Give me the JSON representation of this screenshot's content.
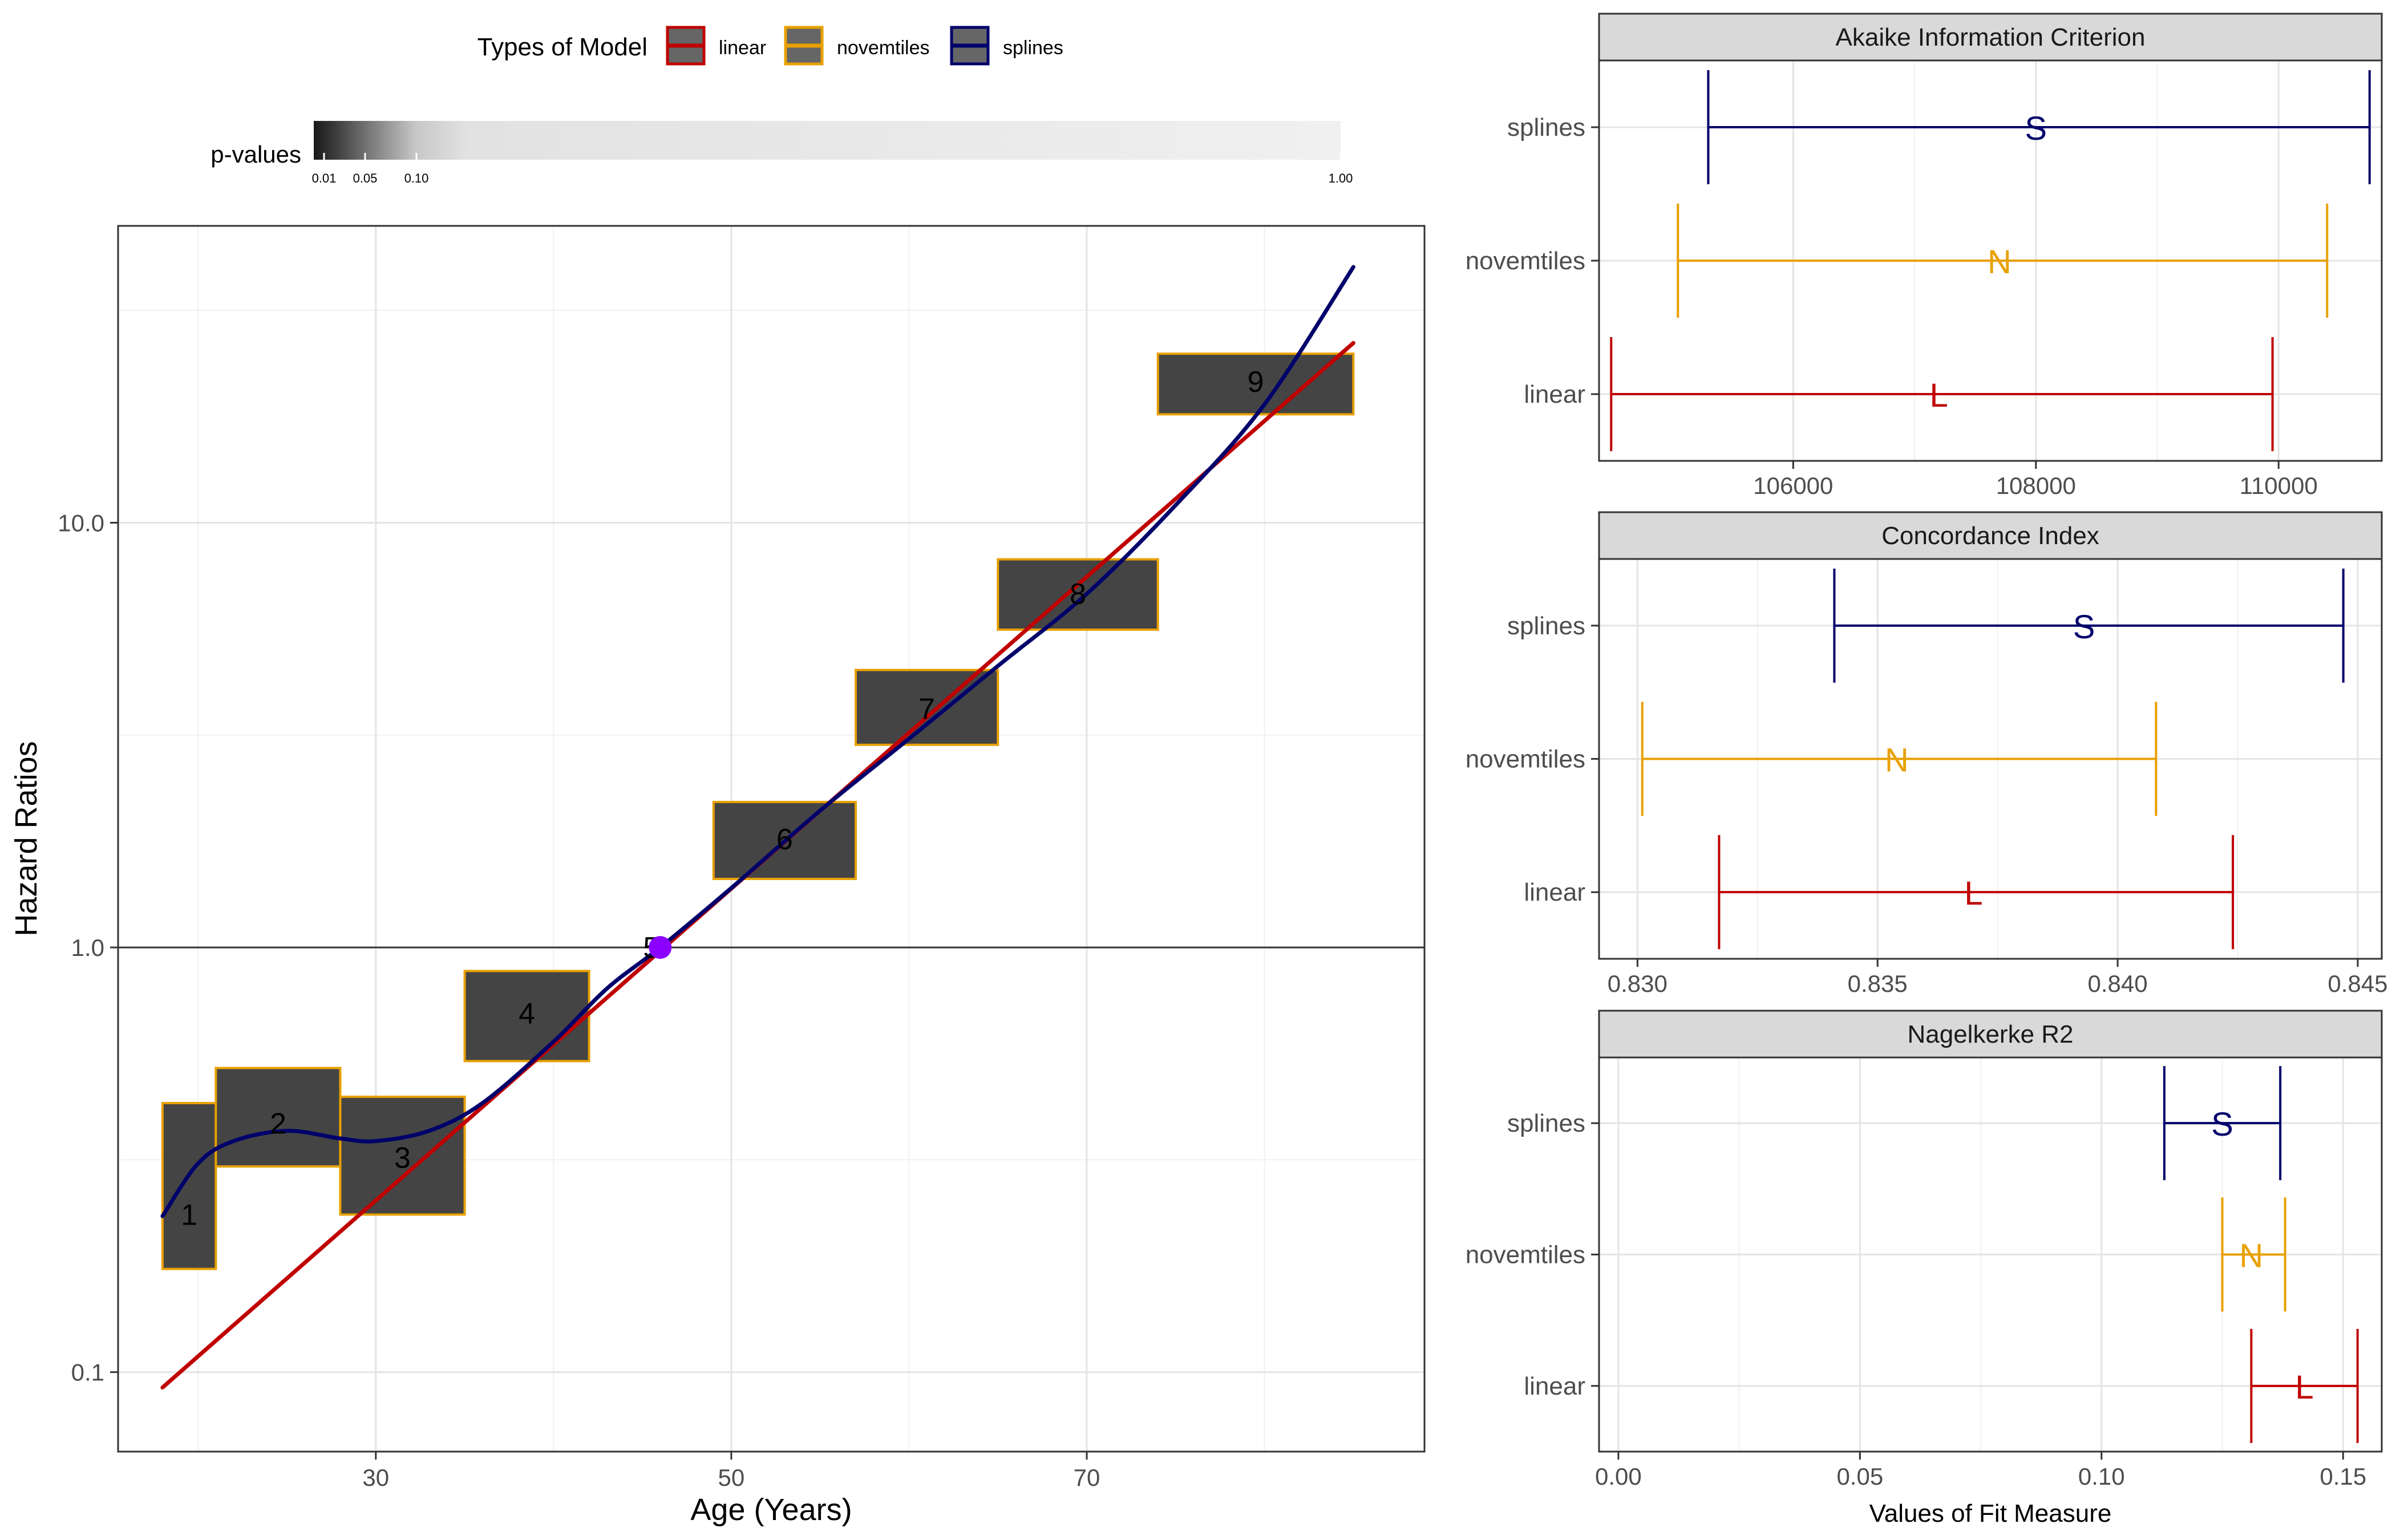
{
  "legend": {
    "model_title": "Types of Model",
    "models": [
      {
        "name": "linear",
        "color": "#c00000"
      },
      {
        "name": "novemtiles",
        "color": "#e8a000"
      },
      {
        "name": "splines",
        "color": "#00006b"
      }
    ],
    "pvalue_title": "p-values",
    "pvalue_ticks": [
      "0.01",
      "0.05",
      "0.10",
      "1.00"
    ]
  },
  "chart_data": [
    {
      "type": "line",
      "xlabel": "Age (Years)",
      "ylabel": "Hazard Ratios",
      "log_y": true,
      "xlim": [
        15.5,
        89
      ],
      "ylim": [
        0.065,
        50
      ],
      "x_ticks": [
        30,
        50,
        70
      ],
      "y_ticks": [
        0.1,
        1.0,
        10.0
      ],
      "y_tick_labels": [
        "0.1",
        "1.0",
        "10.0"
      ],
      "reference_line": 1.0,
      "grid": true,
      "novemtiles": [
        {
          "label": "1",
          "x0": 18,
          "x1": 21,
          "lo": 0.175,
          "hi": 0.43,
          "mid": 0.235
        },
        {
          "label": "2",
          "x0": 21,
          "x1": 28,
          "lo": 0.305,
          "hi": 0.52,
          "mid": 0.385
        },
        {
          "label": "3",
          "x0": 28,
          "x1": 35,
          "lo": 0.235,
          "hi": 0.445,
          "mid": 0.32
        },
        {
          "label": "4",
          "x0": 35,
          "x1": 42,
          "lo": 0.54,
          "hi": 0.88,
          "mid": 0.7
        },
        {
          "label": "5",
          "x0": 46,
          "x1": 46,
          "lo": 1.0,
          "hi": 1.0,
          "mid": 1.0
        },
        {
          "label": "6",
          "x0": 49,
          "x1": 57,
          "lo": 1.45,
          "hi": 2.2,
          "mid": 1.8
        },
        {
          "label": "7",
          "x0": 57,
          "x1": 65,
          "lo": 3.0,
          "hi": 4.5,
          "mid": 3.65
        },
        {
          "label": "8",
          "x0": 65,
          "x1": 74,
          "lo": 5.6,
          "hi": 8.2,
          "mid": 6.8
        },
        {
          "label": "9",
          "x0": 74,
          "x1": 85,
          "lo": 18.0,
          "hi": 25.0,
          "mid": 21.5
        }
      ],
      "reference_point": {
        "x": 46,
        "y": 1.0,
        "color": "#8b00ff"
      },
      "series": [
        {
          "name": "linear",
          "x": [
            18,
            85
          ],
          "y": [
            0.092,
            26.5
          ]
        },
        {
          "name": "splines",
          "x": [
            18,
            20,
            22,
            25,
            28,
            30,
            33,
            36,
            40,
            43,
            46,
            50,
            55,
            60,
            65,
            70,
            75,
            80,
            85
          ],
          "y": [
            0.233,
            0.31,
            0.35,
            0.37,
            0.355,
            0.35,
            0.37,
            0.43,
            0.6,
            0.8,
            1.0,
            1.38,
            2.1,
            3.1,
            4.6,
            6.8,
            11.0,
            19.0,
            40.0
          ]
        }
      ]
    },
    {
      "type": "errorbar",
      "title": "Akaike Information Criterion",
      "categories": [
        "splines",
        "novemtiles",
        "linear"
      ],
      "markers": [
        "S",
        "N",
        "L"
      ],
      "xlim": [
        104400,
        110850
      ],
      "x_ticks": [
        106000,
        108000,
        110000
      ],
      "x_tick_labels": [
        "106000",
        "108000",
        "110000"
      ],
      "series": [
        {
          "name": "splines",
          "lo": 105300,
          "mid": 108000,
          "hi": 110750
        },
        {
          "name": "novemtiles",
          "lo": 105050,
          "mid": 107700,
          "hi": 110400
        },
        {
          "name": "linear",
          "lo": 104500,
          "mid": 107200,
          "hi": 109950
        }
      ]
    },
    {
      "type": "errorbar",
      "title": "Concordance Index",
      "categories": [
        "splines",
        "novemtiles",
        "linear"
      ],
      "markers": [
        "S",
        "N",
        "L"
      ],
      "xlim": [
        0.8292,
        0.8455
      ],
      "x_ticks": [
        0.83,
        0.835,
        0.84,
        0.845
      ],
      "x_tick_labels": [
        "0.830",
        "0.835",
        "0.840",
        "0.845"
      ],
      "series": [
        {
          "name": "splines",
          "lo": 0.8341,
          "mid": 0.8393,
          "hi": 0.8447
        },
        {
          "name": "novemtiles",
          "lo": 0.8301,
          "mid": 0.8354,
          "hi": 0.8408
        },
        {
          "name": "linear",
          "lo": 0.8317,
          "mid": 0.837,
          "hi": 0.8424
        }
      ]
    },
    {
      "type": "errorbar",
      "title": "Nagelkerke R2",
      "xlabel": "Values of Fit Measure",
      "categories": [
        "splines",
        "novemtiles",
        "linear"
      ],
      "markers": [
        "S",
        "N",
        "L"
      ],
      "xlim": [
        -0.004,
        0.158
      ],
      "x_ticks": [
        0.0,
        0.05,
        0.1,
        0.15
      ],
      "x_tick_labels": [
        "0.00",
        "0.05",
        "0.10",
        "0.15"
      ],
      "series": [
        {
          "name": "splines",
          "lo": 0.113,
          "mid": 0.125,
          "hi": 0.137
        },
        {
          "name": "novemtiles",
          "lo": 0.125,
          "mid": 0.131,
          "hi": 0.138
        },
        {
          "name": "linear",
          "lo": 0.131,
          "mid": 0.142,
          "hi": 0.153
        }
      ]
    }
  ]
}
